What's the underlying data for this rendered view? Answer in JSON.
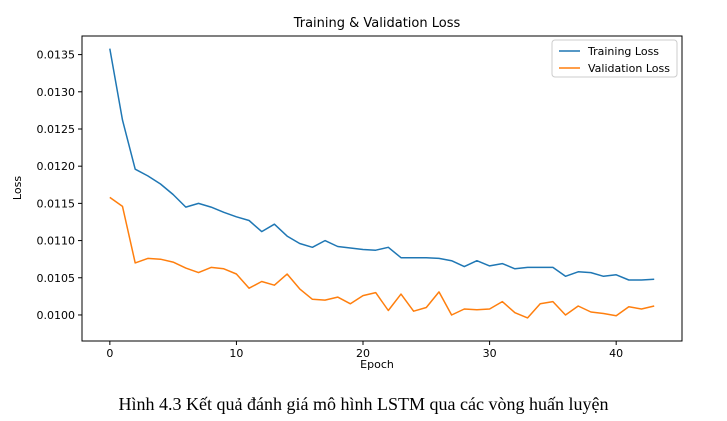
{
  "caption": "Hình 4.3 Kết quả đánh giá mô hình LSTM qua các vòng huấn luyện",
  "chart_data": {
    "type": "line",
    "title": "Training & Validation Loss",
    "xlabel": "Epoch",
    "ylabel": "Loss",
    "xlim": [
      -2.2,
      45.2
    ],
    "ylim": [
      0.00965,
      0.01375
    ],
    "xticks": [
      0,
      10,
      20,
      30,
      40
    ],
    "yticks": [
      0.01,
      0.0105,
      0.011,
      0.0115,
      0.012,
      0.0125,
      0.013,
      0.0135
    ],
    "ytick_labels": [
      "0.0100",
      "0.0105",
      "0.0110",
      "0.0115",
      "0.0120",
      "0.0125",
      "0.0130",
      "0.0135"
    ],
    "grid": false,
    "legend_position": "top-right",
    "x": [
      0,
      1,
      2,
      3,
      4,
      5,
      6,
      7,
      8,
      9,
      10,
      11,
      12,
      13,
      14,
      15,
      16,
      17,
      18,
      19,
      20,
      21,
      22,
      23,
      24,
      25,
      26,
      27,
      28,
      29,
      30,
      31,
      32,
      33,
      34,
      35,
      36,
      37,
      38,
      39,
      40,
      41,
      42,
      43
    ],
    "series": [
      {
        "name": "Training Loss",
        "color": "#1f77b4",
        "values": [
          0.01358,
          0.01262,
          0.01196,
          0.01187,
          0.01176,
          0.01162,
          0.01145,
          0.0115,
          0.01145,
          0.01138,
          0.01132,
          0.01127,
          0.01112,
          0.01122,
          0.01106,
          0.01096,
          0.01091,
          0.011,
          0.01092,
          0.0109,
          0.01088,
          0.01087,
          0.01091,
          0.01077,
          0.01077,
          0.01077,
          0.01076,
          0.01073,
          0.01065,
          0.01073,
          0.01066,
          0.01069,
          0.01062,
          0.01064,
          0.01064,
          0.01064,
          0.01052,
          0.01058,
          0.01057,
          0.01052,
          0.01054,
          0.01047,
          0.01047,
          0.01048
        ]
      },
      {
        "name": "Validation Loss",
        "color": "#ff7f0e",
        "values": [
          0.01158,
          0.01146,
          0.0107,
          0.01076,
          0.01075,
          0.01071,
          0.01063,
          0.01057,
          0.01064,
          0.01062,
          0.01055,
          0.01036,
          0.01045,
          0.0104,
          0.01055,
          0.01035,
          0.01021,
          0.0102,
          0.01024,
          0.01015,
          0.01026,
          0.0103,
          0.01006,
          0.01028,
          0.01005,
          0.0101,
          0.01031,
          0.01,
          0.01008,
          0.01007,
          0.01008,
          0.01018,
          0.01003,
          0.00996,
          0.01015,
          0.01018,
          0.01,
          0.01012,
          0.01004,
          0.01002,
          0.00999,
          0.01011,
          0.01008,
          0.01012
        ]
      }
    ]
  }
}
